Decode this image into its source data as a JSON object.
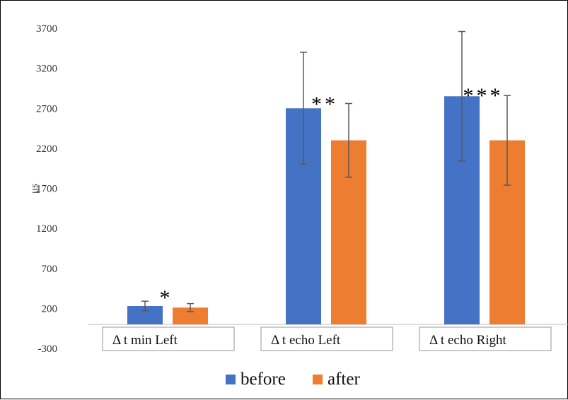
{
  "chart_data": {
    "type": "bar",
    "title": "",
    "xlabel": "",
    "ylabel": "μs",
    "ylim": [
      -300,
      3700
    ],
    "yticks": [
      -300,
      200,
      700,
      1200,
      1700,
      2200,
      2700,
      3200,
      3700
    ],
    "categories": [
      "Δ t min Left",
      "Δ t echo Left",
      "Δ t echo Right"
    ],
    "series": [
      {
        "name": "before",
        "color": "#4472c4",
        "values": [
          230,
          2700,
          2850
        ],
        "errors": [
          60,
          700,
          810
        ]
      },
      {
        "name": "after",
        "color": "#ed7d31",
        "values": [
          210,
          2300,
          2300
        ],
        "errors": [
          50,
          460,
          560
        ]
      }
    ],
    "annotations": [
      "*",
      "**",
      "***"
    ],
    "legend": "bottom",
    "grid": false
  }
}
